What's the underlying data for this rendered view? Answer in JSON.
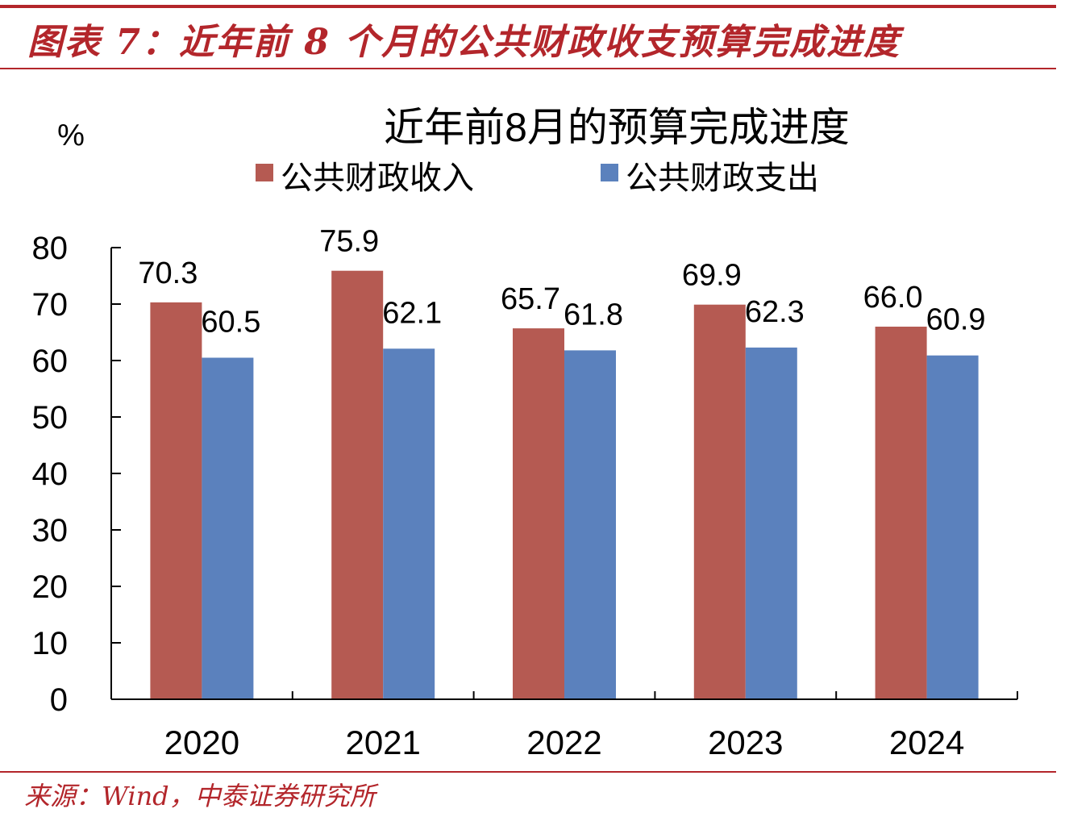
{
  "figure": {
    "title": "图表 7：近年前 8 个月的公共财政收支预算完成进度",
    "source": "来源：Wind，中泰证券研究所"
  },
  "colors": {
    "revenue": "#b55a52",
    "expenditure": "#5b81bd",
    "accent": "#b3262b",
    "axis": "#000000",
    "text": "#000000"
  },
  "chart_data": {
    "type": "bar",
    "title": "近年前8月的预算完成进度",
    "ylabel": "%",
    "xlabel": "",
    "categories": [
      "2020",
      "2021",
      "2022",
      "2023",
      "2024"
    ],
    "series": [
      {
        "name": "公共财政收入",
        "values": [
          70.3,
          75.9,
          65.7,
          69.9,
          66.0
        ],
        "labels": [
          "70.3",
          "75.9",
          "65.7",
          "69.9",
          "66.0"
        ]
      },
      {
        "name": "公共财政支出",
        "values": [
          60.5,
          62.1,
          61.8,
          62.3,
          60.9
        ],
        "labels": [
          "60.5",
          "62.1",
          "61.8",
          "62.3",
          "60.9"
        ]
      }
    ],
    "ylim": [
      0,
      80
    ],
    "yticks": [
      "0",
      "10",
      "20",
      "30",
      "40",
      "50",
      "60",
      "70",
      "80"
    ],
    "grid": false,
    "legend_position": "top-center"
  }
}
